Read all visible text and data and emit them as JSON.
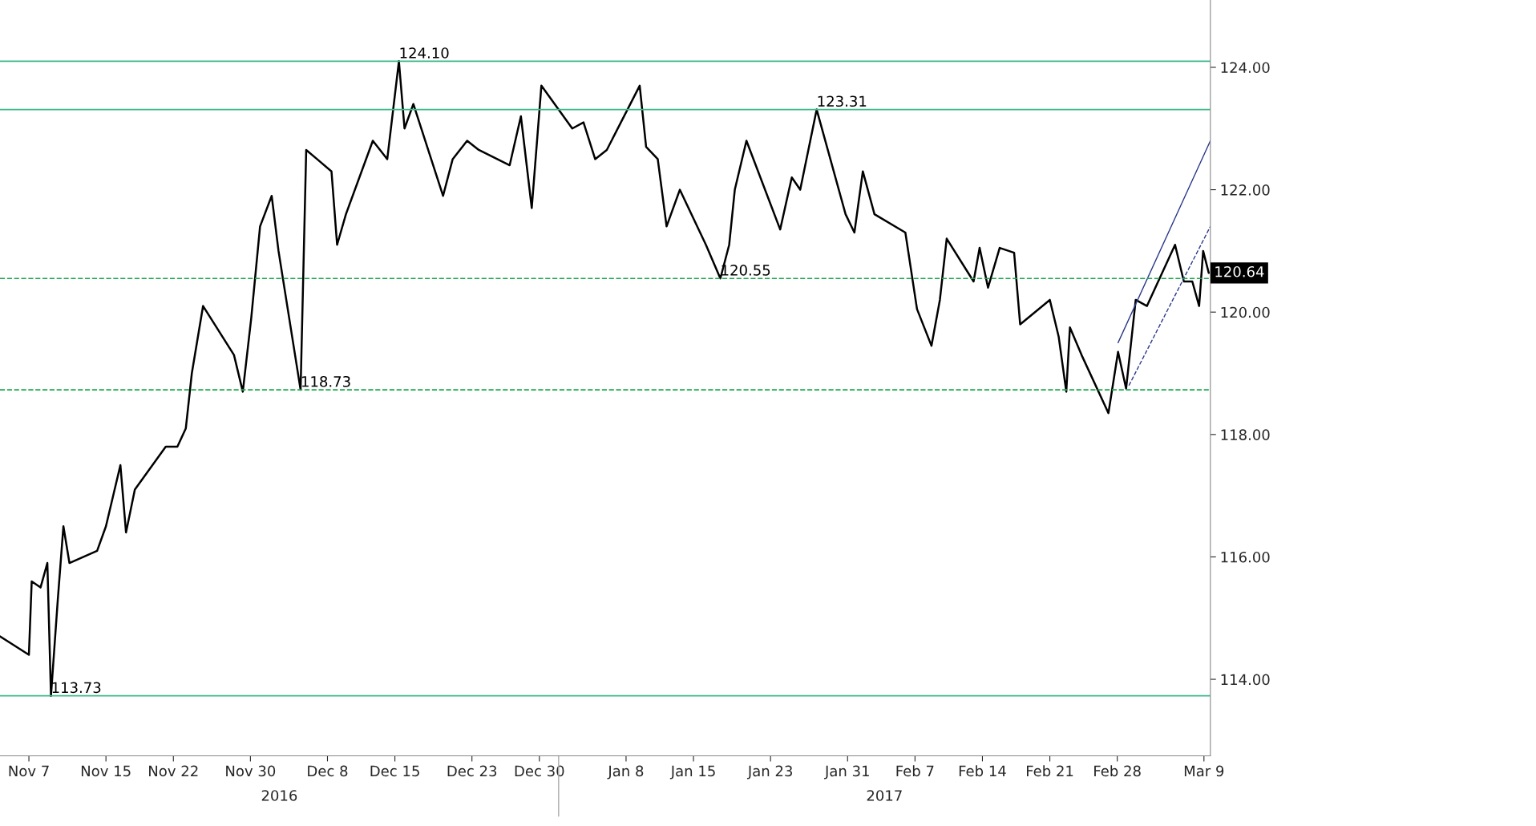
{
  "chart_data": {
    "type": "line",
    "x": [
      "2016-11-04T00:00",
      "2016-11-07T00:00",
      "2016-11-07T07:00",
      "2016-11-08T05:00",
      "2016-11-08T22:00",
      "2016-11-09T07:00",
      "2016-11-10T00:00",
      "2016-11-10T14:00",
      "2016-11-11T05:00",
      "2016-11-14T02:00",
      "2016-11-15T00:00",
      "2016-11-16T12:00",
      "2016-11-17T02:00",
      "2016-11-18T00:00",
      "2016-11-21T05:00",
      "2016-11-22T10:00",
      "2016-11-23T07:00",
      "2016-11-23T22:00",
      "2016-11-25T02:00",
      "2016-11-28T07:00",
      "2016-11-29T05:00",
      "2016-11-30T02:00",
      "2016-12-01T00:00",
      "2016-12-02T05:00",
      "2016-12-02T22:00",
      "2016-12-05T05:00",
      "2016-12-05T19:00",
      "2016-12-06T22:00",
      "2016-12-08T10:00",
      "2016-12-09T00:00",
      "2016-12-09T22:00",
      "2016-12-12T17:00",
      "2016-12-14T05:00",
      "2016-12-15T10:00",
      "2016-12-16T00:00",
      "2016-12-16T22:00",
      "2016-12-20T00:00",
      "2016-12-21T00:00",
      "2016-12-22T12:00",
      "2016-12-23T17:00",
      "2016-12-26T22:00",
      "2016-12-28T02:00",
      "2016-12-29T05:00",
      "2016-12-30T05:00",
      "2017-01-02T10:00",
      "2017-01-03T14:00",
      "2017-01-04T19:00",
      "2017-01-06T00:00",
      "2017-01-09T10:00",
      "2017-01-10T02:00",
      "2017-01-11T07:00",
      "2017-01-12T05:00",
      "2017-01-13T14:00",
      "2017-01-16T07:00",
      "2017-01-17T19:00",
      "2017-01-18T17:00",
      "2017-01-19T07:00",
      "2017-01-20T12:00",
      "2017-01-24T00:00",
      "2017-01-25T05:00",
      "2017-01-26T02:00",
      "2017-01-27T19:00",
      "2017-01-30T19:00",
      "2017-01-31T17:00",
      "2017-02-01T14:00",
      "2017-02-02T19:00",
      "2017-02-06T00:00",
      "2017-02-07T05:00",
      "2017-02-08T17:00",
      "2017-02-09T14:00",
      "2017-02-10T07:00",
      "2017-02-13T02:00",
      "2017-02-13T17:00",
      "2017-02-14T14:00",
      "2017-02-15T19:00",
      "2017-02-17T07:00",
      "2017-02-17T22:00",
      "2017-02-21T00:00",
      "2017-02-21T22:00",
      "2017-02-22T17:00",
      "2017-02-23T02:00",
      "2017-02-24T07:00",
      "2017-02-27T02:00",
      "2017-02-28T02:00",
      "2017-02-28T22:00",
      "2017-03-01T22:00",
      "2017-03-03T02:00",
      "2017-03-06T00:00",
      "2017-03-06T22:00",
      "2017-03-07T19:00",
      "2017-03-08T12:00",
      "2017-03-08T22:00",
      "2017-03-09T12:00"
    ],
    "series": [
      {
        "color": "#000000",
        "values": [
          114.7,
          114.4,
          115.6,
          115.5,
          115.9,
          113.73,
          115.3,
          116.5,
          115.9,
          116.1,
          116.5,
          117.5,
          116.4,
          117.1,
          117.8,
          117.8,
          118.1,
          119.0,
          120.1,
          119.3,
          118.7,
          119.9,
          121.4,
          121.9,
          121.0,
          118.73,
          122.65,
          122.5,
          122.3,
          121.1,
          121.6,
          122.8,
          122.5,
          124.1,
          123.0,
          123.4,
          121.9,
          122.5,
          122.8,
          122.65,
          122.4,
          123.2,
          121.7,
          123.7,
          123.0,
          123.1,
          122.5,
          122.65,
          123.7,
          122.7,
          122.5,
          121.4,
          122.0,
          121.1,
          120.55,
          121.1,
          122.0,
          122.8,
          121.35,
          122.2,
          122.0,
          123.31,
          121.6,
          121.3,
          122.3,
          121.6,
          121.3,
          120.05,
          119.45,
          120.2,
          121.2,
          120.5,
          121.05,
          120.4,
          121.05,
          120.97,
          119.8,
          120.2,
          119.6,
          118.7,
          119.75,
          119.3,
          118.35,
          119.35,
          118.75,
          120.2,
          120.1,
          121.1,
          120.5,
          120.5,
          120.1,
          121.0,
          120.64
        ]
      },
      {
        "type": "line",
        "color": "#2b3a8c",
        "line_style": "solid",
        "x": [
          "2017-02-28T02:00",
          "2017-03-09T16:00"
        ],
        "values": [
          119.5,
          122.8
        ]
      },
      {
        "type": "line",
        "color": "#2b3a8c",
        "line_style": "dashed",
        "x": [
          "2017-03-01T05:00",
          "2017-03-09T16:00"
        ],
        "values": [
          118.8,
          121.4
        ]
      }
    ],
    "xlim": [
      "2016-11-04T00:00",
      "2017-03-09T16:00"
    ],
    "xticks": [
      {
        "value": "2016-11-07",
        "label": "Nov 7"
      },
      {
        "value": "2016-11-15",
        "label": "Nov 15"
      },
      {
        "value": "2016-11-22",
        "label": "Nov 22"
      },
      {
        "value": "2016-11-30",
        "label": "Nov 30"
      },
      {
        "value": "2016-12-08",
        "label": "Dec 8"
      },
      {
        "value": "2016-12-15",
        "label": "Dec 15"
      },
      {
        "value": "2016-12-23",
        "label": "Dec 23"
      },
      {
        "value": "2016-12-30",
        "label": "Dec 30"
      },
      {
        "value": "2017-01-08",
        "label": "Jan 8"
      },
      {
        "value": "2017-01-15",
        "label": "Jan 15"
      },
      {
        "value": "2017-01-23",
        "label": "Jan 23"
      },
      {
        "value": "2017-01-31",
        "label": "Jan 31"
      },
      {
        "value": "2017-02-07",
        "label": "Feb 7"
      },
      {
        "value": "2017-02-14",
        "label": "Feb 14"
      },
      {
        "value": "2017-02-21",
        "label": "Feb 21"
      },
      {
        "value": "2017-02-28",
        "label": "Feb 28"
      },
      {
        "value": "2017-03-09",
        "label": "Mar 9"
      }
    ],
    "ylim": [
      112.75,
      125.1
    ],
    "yticks": [
      {
        "value": 114,
        "label": "114.00"
      },
      {
        "value": 116,
        "label": "116.00"
      },
      {
        "value": 118,
        "label": "118.00"
      },
      {
        "value": 120,
        "label": "120.00"
      },
      {
        "value": 122,
        "label": "122.00"
      },
      {
        "value": 124,
        "label": "124.00"
      }
    ],
    "ref_lines": [
      {
        "axis": "y",
        "value": 124.1,
        "color": "#3cb88a",
        "line_style": "solid"
      },
      {
        "axis": "y",
        "value": 123.31,
        "color": "#3cb88a",
        "line_style": "solid"
      },
      {
        "axis": "y",
        "value": 120.55,
        "color": "#1aa84e",
        "line_style": "dashed"
      },
      {
        "axis": "y",
        "value": 118.73,
        "color": "#1aa84e",
        "line_style": "dashed"
      },
      {
        "axis": "y",
        "value": 113.73,
        "color": "#3cb88a",
        "line_style": "solid"
      }
    ],
    "annotations": [
      {
        "text": "124.10",
        "x": "2016-12-15T10:00",
        "y": 124.1
      },
      {
        "text": "123.31",
        "x": "2017-01-27T19:00",
        "y": 123.31
      },
      {
        "text": "120.55",
        "x": "2017-01-17T19:00",
        "y": 120.55
      },
      {
        "text": "118.73",
        "x": "2016-12-05T05:00",
        "y": 118.73
      },
      {
        "text": "113.73",
        "x": "2016-11-09T07:00",
        "y": 113.73
      },
      {
        "text": "120.64",
        "x": "2017-03-09T16:00",
        "y": 120.64
      },
      "2016",
      "2017"
    ],
    "grid": false,
    "legend": false,
    "marker": "none",
    "line_style": "solid"
  }
}
